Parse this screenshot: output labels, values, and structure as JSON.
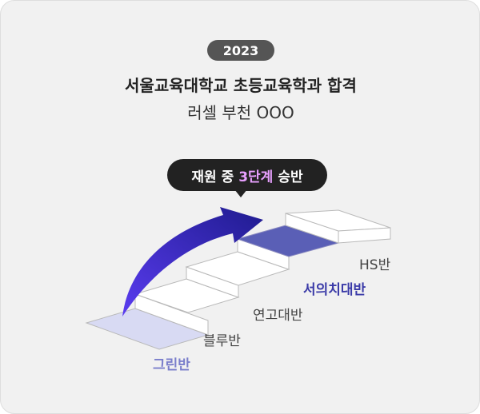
{
  "header": {
    "year": "2023",
    "title": "서울교육대학교 초등교육학과 합격",
    "subtitle": "러셀 부천 OOO"
  },
  "callout": {
    "prefix": "재원 중",
    "highlight": "3단계",
    "suffix": "승반"
  },
  "levels": [
    {
      "label": "그린반",
      "color": "#d8daf3"
    },
    {
      "label": "블루반",
      "color": "#ffffff"
    },
    {
      "label": "연고대반",
      "color": "#ffffff"
    },
    {
      "label": "서의치대반",
      "color": "#5a5fb6"
    },
    {
      "label": "HS반",
      "color": "#ffffff"
    }
  ],
  "colors": {
    "card_bg": "#f1f1f1",
    "badge_bg": "#555555",
    "callout_bg": "#222222",
    "callout_highlight": "#e8a0ff",
    "arrow_start": "#4a2bd9",
    "arrow_end": "#1e1a8a",
    "green_label": "#7a7ecb",
    "sy_label": "#3b3ba8"
  },
  "icons": {
    "arrow": "curved-up-arrow-icon"
  }
}
